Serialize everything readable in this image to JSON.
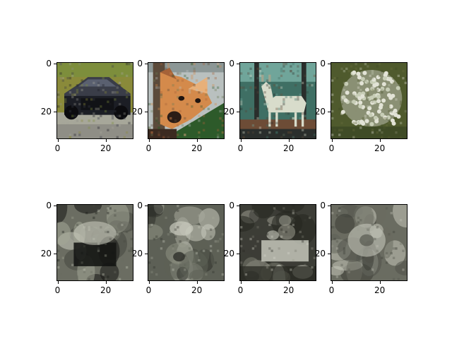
{
  "figure": {
    "rows": 2,
    "cols": 4,
    "panels": [
      {
        "row": 0,
        "col": 0,
        "subject": "car",
        "palette": [
          "#8a8a3a",
          "#7d8e3c",
          "#a7a79a",
          "#1c1e25",
          "#3a3d48",
          "#8f8e86"
        ]
      },
      {
        "row": 0,
        "col": 1,
        "subject": "dog-face",
        "palette": [
          "#5b4a3a",
          "#d48a4b",
          "#a56238",
          "#6d7a55",
          "#2d5a2a",
          "#b9c0bf"
        ]
      },
      {
        "row": 0,
        "col": 2,
        "subject": "white-deer",
        "palette": [
          "#3f6f64",
          "#70a59a",
          "#d8dccb",
          "#2a2e2c",
          "#6d4c36",
          "#52453a"
        ]
      },
      {
        "row": 0,
        "col": 3,
        "subject": "white-flowers",
        "palette": [
          "#4f5a2d",
          "#6a7040",
          "#c7cdb6",
          "#e2e3d6",
          "#8a9074",
          "#3f4b26"
        ]
      },
      {
        "row": 1,
        "col": 0,
        "subject": "blurry-reconstruction",
        "palette": [
          "#6b6d62",
          "#a3a596",
          "#151614",
          "#c7c8bb",
          "#45473f"
        ]
      },
      {
        "row": 1,
        "col": 1,
        "subject": "blurry-reconstruction",
        "palette": [
          "#5d6056",
          "#8e9184",
          "#c9cbbd",
          "#2e302a",
          "#a7a99c"
        ]
      },
      {
        "row": 1,
        "col": 2,
        "subject": "blurry-reconstruction",
        "palette": [
          "#3c3d36",
          "#7a7c70",
          "#d7d8cc",
          "#25261f",
          "#9a9b8e"
        ]
      },
      {
        "row": 1,
        "col": 3,
        "subject": "blurry-reconstruction",
        "palette": [
          "#6a6c61",
          "#9a9c90",
          "#c5c6ba",
          "#3a3c34",
          "#50524a"
        ]
      }
    ],
    "ticks": {
      "y": [
        {
          "value": 0,
          "label": "0"
        },
        {
          "value": 20,
          "label": "20"
        }
      ],
      "x": [
        {
          "value": 0,
          "label": "0"
        },
        {
          "value": 20,
          "label": "20"
        }
      ]
    }
  }
}
